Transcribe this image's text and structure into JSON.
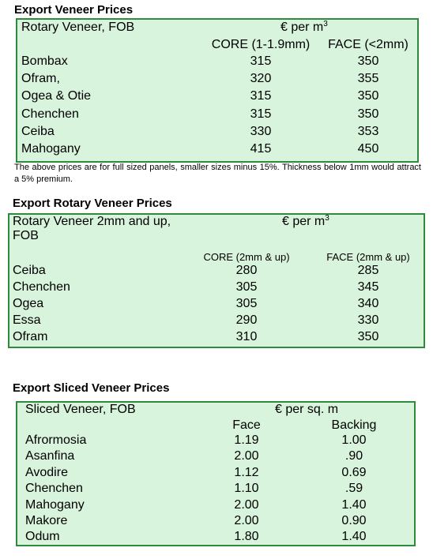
{
  "sections": [
    {
      "title": "Export Veneer Prices",
      "table": {
        "caption": "Rotary Veneer, FOB",
        "unit": "€ per m",
        "unit_sup": "3",
        "columns": [
          "CORE (1-1.9mm)",
          "FACE (<2mm)"
        ],
        "rows": [
          [
            "Bombax",
            "315",
            "350"
          ],
          [
            "Ofram,",
            "320",
            "355"
          ],
          [
            "Ogea  & Otie",
            "315",
            "350"
          ],
          [
            "Chenchen",
            "315",
            "350"
          ],
          [
            "Ceiba",
            "330",
            "353"
          ],
          [
            "Mahogany",
            "415",
            "450"
          ]
        ]
      },
      "note": "The above prices are for full sized panels, smaller sizes minus 15%. Thickness below 1mm would attract a 5% premium."
    },
    {
      "title": "Export Rotary Veneer Prices",
      "table": {
        "caption": "Rotary Veneer 2mm and up, FOB",
        "unit": "€  per m",
        "unit_sup": "3",
        "columns": [
          "CORE (2mm & up)",
          "FACE (2mm & up)"
        ],
        "rows": [
          [
            "Ceiba",
            "280",
            "285"
          ],
          [
            "Chenchen",
            "305",
            "345"
          ],
          [
            "Ogea",
            "305",
            "340"
          ],
          [
            "Essa",
            "290",
            "330"
          ],
          [
            "Ofram",
            "310",
            "350"
          ]
        ]
      }
    },
    {
      "title": "Export Sliced Veneer Prices",
      "table": {
        "caption": "Sliced Veneer, FOB",
        "unit": "€ per sq. m",
        "columns": [
          "Face",
          "Backing"
        ],
        "rows": [
          [
            "Afrormosia",
            "1.19",
            "1.00"
          ],
          [
            "Asanfina",
            "2.00",
            ".90"
          ],
          [
            "Avodire",
            "1.12",
            "0.69"
          ],
          [
            "Chenchen",
            "1.10",
            ".59"
          ],
          [
            "Mahogany",
            "2.00",
            "1.40"
          ],
          [
            "Makore",
            "2.00",
            "0.90"
          ],
          [
            "Odum",
            "1.80",
            "1.40"
          ]
        ]
      }
    }
  ]
}
